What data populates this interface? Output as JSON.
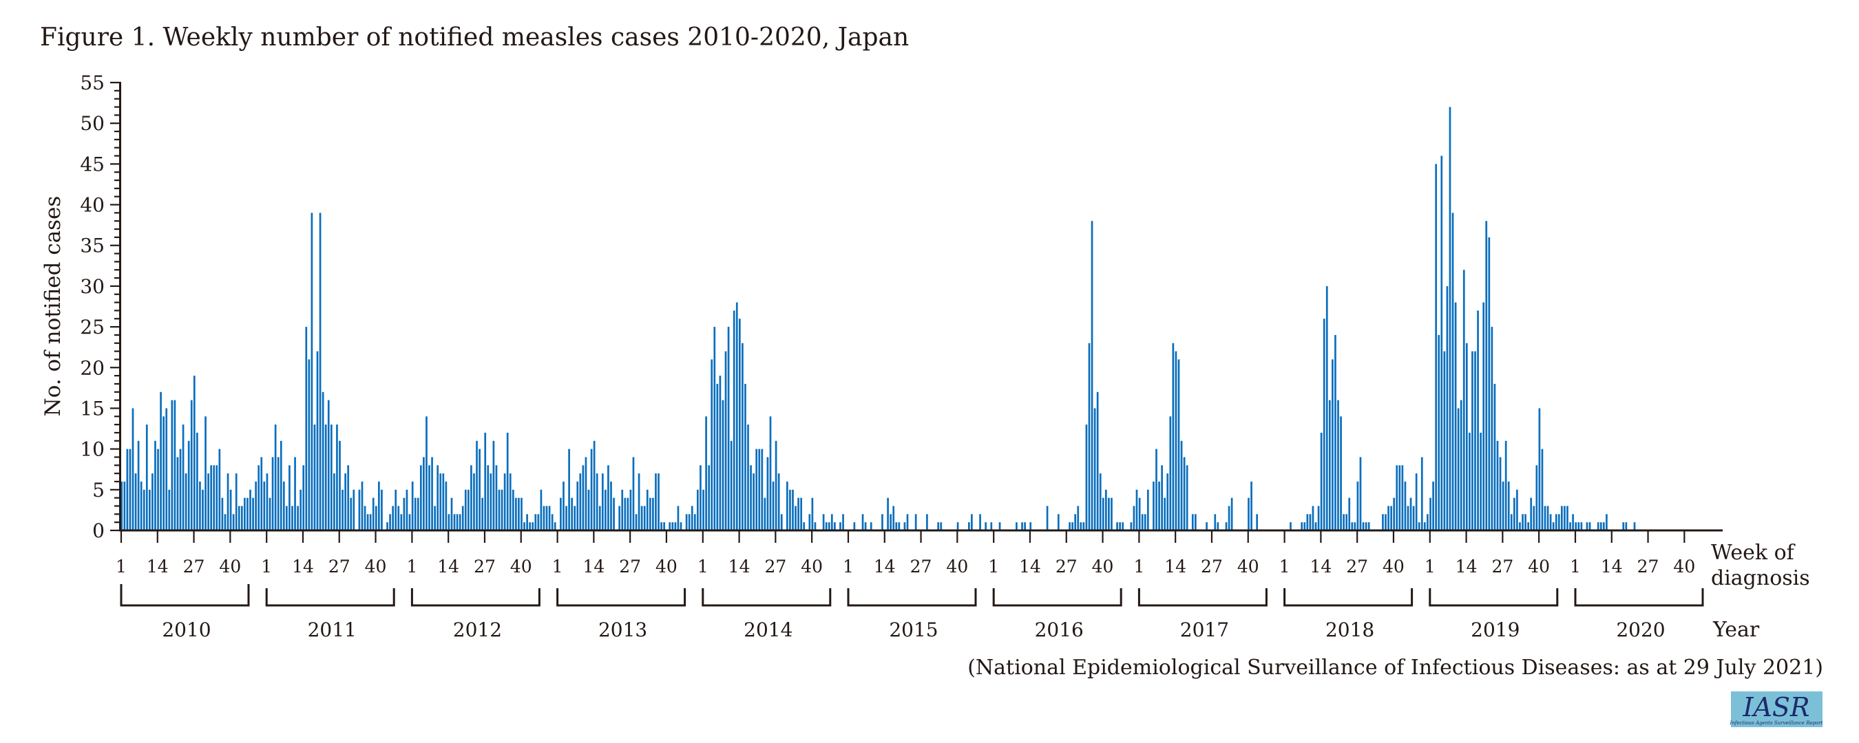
{
  "chart_data": {
    "type": "bar",
    "title": "Figure 1. Weekly number of notified measles cases 2010-2020, Japan",
    "ylabel": "No. of notified cases",
    "xlabel": "Week of diagnosis",
    "xlabel_lines": [
      "Week of",
      "diagnosis"
    ],
    "year_axis_label": "Year",
    "ylim": [
      0,
      55
    ],
    "yticks": [
      0,
      5,
      10,
      15,
      20,
      25,
      30,
      35,
      40,
      45,
      50,
      55
    ],
    "week_ticks": [
      "1",
      "14",
      "27",
      "40"
    ],
    "grid": false,
    "legend": "none",
    "bar_color": "#0a6ebd",
    "source_note": "(National Epidemiological Surveillance of Infectious Diseases: as at 29 July 2021)",
    "series": [
      {
        "name": "2010",
        "weeks": 52,
        "values": [
          6,
          6,
          10,
          10,
          15,
          7,
          11,
          6,
          5,
          13,
          5,
          7,
          11,
          10,
          17,
          14,
          15,
          5,
          16,
          16,
          9,
          10,
          13,
          7,
          11,
          16,
          19,
          12,
          6,
          5,
          14,
          7,
          8,
          8,
          8,
          10,
          4,
          2,
          7,
          5,
          2,
          7,
          3,
          3,
          4,
          4,
          5,
          4,
          6,
          8,
          9,
          6
        ]
      },
      {
        "name": "2011",
        "weeks": 52,
        "values": [
          7,
          4,
          9,
          13,
          9,
          11,
          6,
          3,
          8,
          3,
          9,
          3,
          5,
          8,
          25,
          21,
          39,
          13,
          22,
          39,
          17,
          13,
          16,
          13,
          7,
          13,
          11,
          5,
          7,
          8,
          4,
          5,
          0,
          5,
          6,
          3,
          2,
          2,
          4,
          3,
          6,
          5,
          0,
          1,
          2,
          3,
          5,
          3,
          2,
          4,
          5,
          2
        ]
      },
      {
        "name": "2012",
        "weeks": 52,
        "values": [
          6,
          4,
          4,
          8,
          9,
          14,
          8,
          9,
          3,
          8,
          7,
          7,
          6,
          2,
          4,
          2,
          2,
          2,
          3,
          5,
          5,
          8,
          7,
          11,
          10,
          4,
          12,
          8,
          7,
          11,
          8,
          5,
          5,
          7,
          12,
          7,
          5,
          4,
          4,
          4,
          1,
          2,
          1,
          1,
          2,
          2,
          5,
          3,
          3,
          3,
          2,
          1
        ]
      },
      {
        "name": "2013",
        "weeks": 52,
        "values": [
          0,
          4,
          6,
          3,
          10,
          4,
          3,
          6,
          7,
          8,
          9,
          5,
          10,
          11,
          7,
          3,
          7,
          5,
          8,
          6,
          4,
          0,
          3,
          5,
          4,
          4,
          5,
          9,
          2,
          7,
          3,
          3,
          5,
          4,
          4,
          7,
          7,
          1,
          1,
          0,
          1,
          1,
          1,
          3,
          1,
          0,
          2,
          2,
          3,
          2,
          5,
          8
        ]
      },
      {
        "name": "2014",
        "weeks": 52,
        "values": [
          5,
          14,
          8,
          21,
          25,
          18,
          19,
          16,
          22,
          25,
          11,
          27,
          28,
          26,
          23,
          18,
          13,
          8,
          7,
          10,
          10,
          10,
          4,
          9,
          14,
          6,
          11,
          7,
          2,
          0,
          6,
          5,
          5,
          3,
          4,
          4,
          1,
          0,
          2,
          4,
          1,
          0,
          0,
          2,
          1,
          1,
          2,
          1,
          0,
          1,
          2,
          0
        ]
      },
      {
        "name": "2015",
        "weeks": 53,
        "values": [
          0,
          0,
          1,
          0,
          0,
          2,
          1,
          0,
          1,
          0,
          0,
          0,
          2,
          0,
          4,
          2,
          3,
          1,
          1,
          0,
          1,
          2,
          0,
          0,
          2,
          0,
          0,
          0,
          2,
          0,
          0,
          0,
          1,
          1,
          0,
          0,
          0,
          0,
          0,
          1,
          0,
          0,
          0,
          1,
          2,
          0,
          0,
          2,
          0,
          1,
          0,
          1,
          0
        ]
      },
      {
        "name": "2016",
        "weeks": 52,
        "values": [
          0,
          0,
          1,
          0,
          0,
          0,
          0,
          0,
          1,
          0,
          1,
          1,
          0,
          1,
          0,
          0,
          0,
          0,
          0,
          3,
          0,
          0,
          0,
          2,
          0,
          0,
          0,
          1,
          1,
          2,
          3,
          1,
          1,
          13,
          23,
          38,
          15,
          17,
          7,
          4,
          5,
          4,
          4,
          0,
          1,
          1,
          1,
          0,
          0,
          1,
          3,
          5
        ]
      },
      {
        "name": "2017",
        "weeks": 52,
        "values": [
          4,
          2,
          2,
          5,
          0,
          6,
          10,
          6,
          8,
          4,
          7,
          14,
          23,
          22,
          21,
          11,
          9,
          8,
          0,
          2,
          2,
          0,
          0,
          0,
          1,
          0,
          0,
          2,
          1,
          0,
          0,
          1,
          3,
          4,
          0,
          0,
          0,
          0,
          0,
          4,
          6,
          0,
          2,
          0,
          0,
          0,
          0,
          0,
          0,
          0,
          0,
          0
        ]
      },
      {
        "name": "2018",
        "weeks": 52,
        "values": [
          0,
          0,
          1,
          0,
          0,
          0,
          1,
          1,
          2,
          2,
          3,
          1,
          3,
          12,
          26,
          30,
          16,
          21,
          24,
          16,
          14,
          2,
          2,
          4,
          1,
          1,
          6,
          9,
          1,
          1,
          1,
          0,
          0,
          0,
          0,
          2,
          2,
          3,
          3,
          4,
          8,
          8,
          8,
          6,
          3,
          4,
          3,
          7,
          1,
          9,
          1,
          2
        ]
      },
      {
        "name": "2019",
        "weeks": 52,
        "values": [
          4,
          6,
          45,
          24,
          46,
          22,
          30,
          52,
          39,
          28,
          15,
          16,
          32,
          23,
          12,
          22,
          22,
          27,
          12,
          28,
          38,
          36,
          25,
          18,
          11,
          9,
          6,
          11,
          6,
          2,
          4,
          5,
          1,
          2,
          2,
          1,
          4,
          3,
          8,
          15,
          10,
          3,
          3,
          2,
          1,
          2,
          2,
          3,
          3,
          3,
          1,
          2
        ]
      },
      {
        "name": "2020",
        "weeks": 53,
        "values": [
          1,
          1,
          1,
          0,
          1,
          1,
          0,
          0,
          1,
          1,
          1,
          2,
          0,
          0,
          0,
          0,
          0,
          1,
          1,
          0,
          0,
          1,
          0,
          0,
          0,
          0,
          0,
          0,
          0,
          0,
          0,
          0,
          0,
          0,
          0,
          0,
          0,
          0,
          0,
          0,
          0,
          0,
          0,
          0,
          0,
          0,
          0,
          0,
          0,
          0,
          0,
          0,
          0
        ]
      }
    ]
  },
  "logo": {
    "text": "IASR",
    "subtitle": "Infectious Agents Surveillance Report",
    "bg_color": "#7cc0d8",
    "text_color": "#1d2a6b"
  }
}
